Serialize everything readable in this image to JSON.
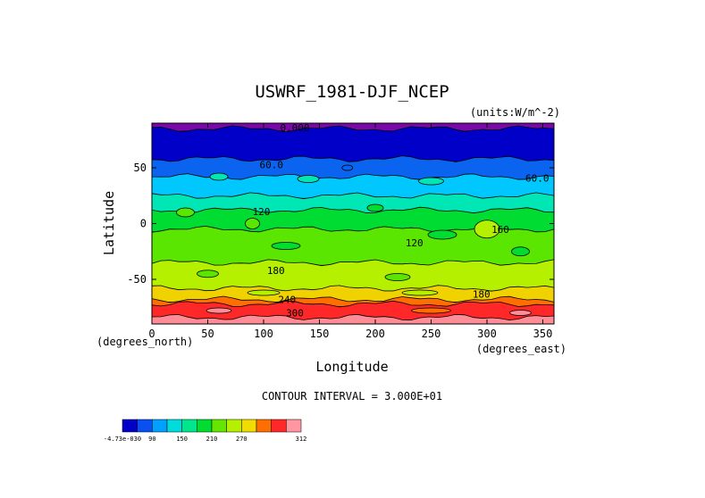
{
  "chart_data": {
    "type": "heatmap",
    "title": "USWRF_1981-DJF_NCEP",
    "units_label": "(units:W/m^-2)",
    "xlabel": "Longitude",
    "ylabel": "Latitude",
    "x_unit_label": "(degrees_east)",
    "y_unit_label": "(degrees_north)",
    "xlim": [
      0,
      360
    ],
    "ylim": [
      -90,
      90
    ],
    "x_ticks": [
      0,
      50,
      100,
      150,
      200,
      250,
      300,
      350
    ],
    "y_ticks": [
      50,
      0,
      -50
    ],
    "contour_interval_text": "CONTOUR INTERVAL = 3.000E+01",
    "contour_labels": [
      {
        "text": "0.000",
        "x": 128,
        "y": 86
      },
      {
        "text": "60.0",
        "x": 107,
        "y": 53
      },
      {
        "text": "60.0",
        "x": 345,
        "y": 41
      },
      {
        "text": "120",
        "x": 98,
        "y": 11
      },
      {
        "text": "120",
        "x": 235,
        "y": -17
      },
      {
        "text": "160",
        "x": 312,
        "y": -5
      },
      {
        "text": "180",
        "x": 111,
        "y": -42
      },
      {
        "text": "180",
        "x": 295,
        "y": -63
      },
      {
        "text": "240",
        "x": 121,
        "y": -68
      },
      {
        "text": "300",
        "x": 128,
        "y": -80
      }
    ],
    "lat_bands": [
      {
        "lat_from": 90,
        "lat_to": 85,
        "color": "#7a0aa8"
      },
      {
        "lat_from": 85,
        "lat_to": 58,
        "color": "#0000c8"
      },
      {
        "lat_from": 58,
        "lat_to": 42,
        "color": "#0a64f0"
      },
      {
        "lat_from": 42,
        "lat_to": 25,
        "color": "#00c8ff"
      },
      {
        "lat_from": 25,
        "lat_to": 12,
        "color": "#00e6b4"
      },
      {
        "lat_from": 12,
        "lat_to": -5,
        "color": "#00dc32"
      },
      {
        "lat_from": -5,
        "lat_to": -35,
        "color": "#5ae600"
      },
      {
        "lat_from": -35,
        "lat_to": -58,
        "color": "#b4f000"
      },
      {
        "lat_from": -58,
        "lat_to": -68,
        "color": "#f0d200"
      },
      {
        "lat_from": -68,
        "lat_to": -72,
        "color": "#ff6e00"
      },
      {
        "lat_from": -72,
        "lat_to": -84,
        "color": "#ff2828"
      },
      {
        "lat_from": -84,
        "lat_to": -90,
        "color": "#ff8c96"
      }
    ],
    "colorbar": {
      "colors": [
        "#0000c8",
        "#0a50f0",
        "#00a0ff",
        "#00dcdc",
        "#00e68c",
        "#00dc32",
        "#64e600",
        "#b4f000",
        "#f0dc00",
        "#ff6e00",
        "#ff2828",
        "#ff96a0"
      ],
      "labels": [
        "-4.73e-030",
        "90",
        "150",
        "210",
        "270",
        "312"
      ]
    }
  }
}
